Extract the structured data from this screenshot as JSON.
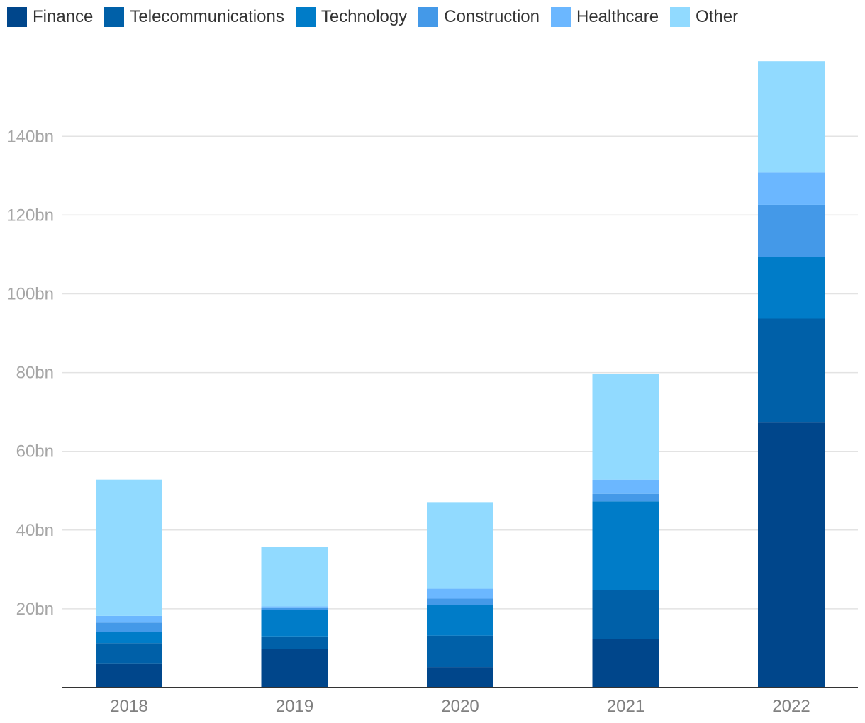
{
  "chart_data": {
    "type": "bar",
    "stacked": true,
    "title": "",
    "xlabel": "",
    "ylabel": "",
    "categories": [
      "2018",
      "2019",
      "2020",
      "2021",
      "2022"
    ],
    "ylim": [
      0,
      160
    ],
    "yticks": [
      {
        "value": 20,
        "label": "20bn"
      },
      {
        "value": 40,
        "label": "40bn"
      },
      {
        "value": 60,
        "label": "60bn"
      },
      {
        "value": 80,
        "label": "80bn"
      },
      {
        "value": 100,
        "label": "100bn"
      },
      {
        "value": 120,
        "label": "120bn"
      },
      {
        "value": 140,
        "label": "140bn"
      }
    ],
    "grid": true,
    "legend_position": "top-left",
    "series": [
      {
        "name": "Finance",
        "color": "#00468b",
        "values": [
          6.0,
          9.8,
          5.2,
          12.4,
          67.3
        ]
      },
      {
        "name": "Telecommunications",
        "color": "#0060a8",
        "values": [
          5.3,
          3.2,
          8.0,
          12.4,
          26.4
        ]
      },
      {
        "name": "Technology",
        "color": "#007cc8",
        "values": [
          2.8,
          6.8,
          7.8,
          22.5,
          15.7
        ]
      },
      {
        "name": "Construction",
        "color": "#4499e8",
        "values": [
          2.4,
          0.4,
          1.6,
          1.9,
          13.2
        ]
      },
      {
        "name": "Healthcare",
        "color": "#6bb7ff",
        "values": [
          1.7,
          0.4,
          2.5,
          3.6,
          8.2
        ]
      },
      {
        "name": "Other",
        "color": "#91daff",
        "values": [
          34.6,
          15.2,
          22.0,
          26.9,
          28.3
        ]
      }
    ]
  }
}
